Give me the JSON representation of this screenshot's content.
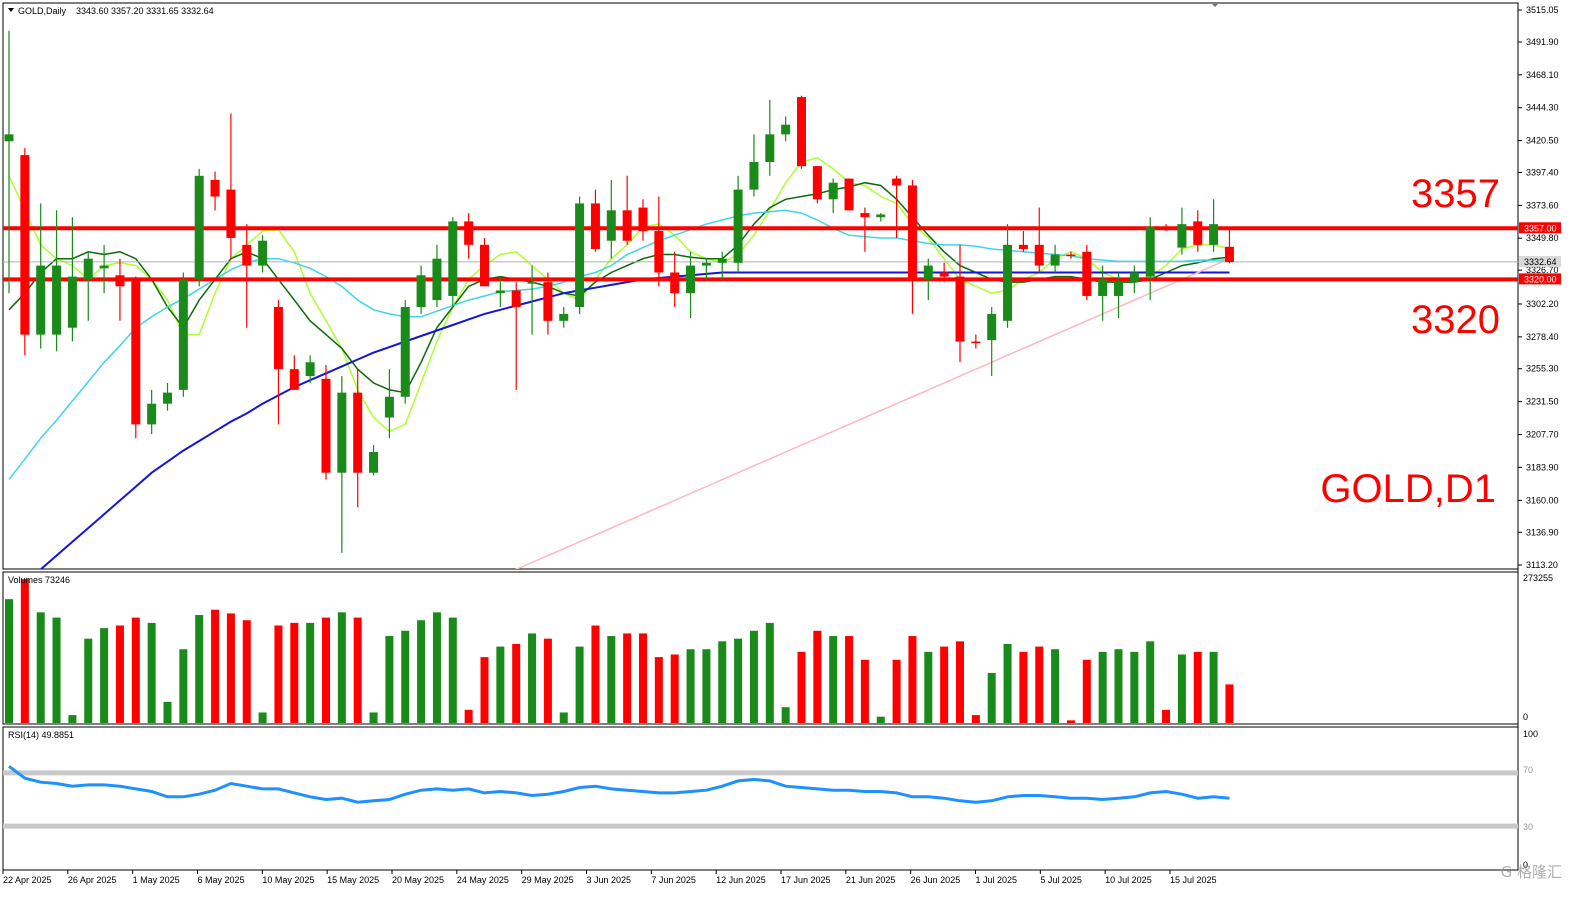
{
  "header": {
    "symbol_label": "GOLD,Daily",
    "ohlc_text": "3343.60 3357.20 3331.65 3332.64"
  },
  "annotations": {
    "big_label_upper": "3357",
    "big_label_lower": "3320",
    "symbol_tf": "GOLD,D1"
  },
  "volume_panel": {
    "label": "Volumes 73246",
    "max_label": "273255",
    "min_label": "0"
  },
  "rsi_panel": {
    "label": "RSI(14) 49.8851",
    "top_label": "100",
    "level_high_label": "70",
    "level_low_label": "30",
    "bottom_label": "0"
  },
  "watermark": "G 格隆汇",
  "chart_data": {
    "type": "candlestick",
    "symbol": "GOLD",
    "timeframe": "Daily",
    "price_axis": {
      "range": [
        3113.2,
        3515.05
      ],
      "tick_labels": [
        "3515.05",
        "3491.90",
        "3468.10",
        "3444.30",
        "3420.50",
        "3397.40",
        "3373.60",
        "3349.80",
        "3326.70",
        "3302.20",
        "3278.40",
        "3255.30",
        "3231.50",
        "3207.70",
        "3183.90",
        "3160.00",
        "3136.90",
        "3113.20"
      ],
      "current_price_label": "3332.64",
      "current_price": 3332.64
    },
    "horizontal_lines": [
      {
        "value": 3357.0,
        "label": "3357.00",
        "color": "#ff0000"
      },
      {
        "value": 3320.0,
        "label": "3320.00",
        "color": "#ff0000"
      }
    ],
    "x_axis_labels": [
      "22 Apr 2025",
      "26 Apr 2025",
      "1 May 2025",
      "6 May 2025",
      "10 May 2025",
      "15 May 2025",
      "20 May 2025",
      "24 May 2025",
      "29 May 2025",
      "3 Jun 2025",
      "7 Jun 2025",
      "12 Jun 2025",
      "17 Jun 2025",
      "21 Jun 2025",
      "26 Jun 2025",
      "1 Jul 2025",
      "5 Jul 2025",
      "10 Jul 2025",
      "15 Jul 2025"
    ],
    "candles": [
      {
        "o": 3420,
        "h": 3500,
        "l": 3310,
        "c": 3425,
        "v": 235000
      },
      {
        "o": 3410,
        "h": 3415,
        "l": 3265,
        "c": 3280,
        "v": 273000
      },
      {
        "o": 3280,
        "h": 3375,
        "l": 3270,
        "c": 3330,
        "v": 210000
      },
      {
        "o": 3280,
        "h": 3370,
        "l": 3268,
        "c": 3330,
        "v": 200000
      },
      {
        "o": 3285,
        "h": 3365,
        "l": 3275,
        "c": 3322,
        "v": 15000
      },
      {
        "o": 3320,
        "h": 3340,
        "l": 3290,
        "c": 3335,
        "v": 160000
      },
      {
        "o": 3328,
        "h": 3345,
        "l": 3310,
        "c": 3330,
        "v": 180000
      },
      {
        "o": 3323,
        "h": 3335,
        "l": 3290,
        "c": 3315,
        "v": 185000
      },
      {
        "o": 3320,
        "h": 3322,
        "l": 3205,
        "c": 3215,
        "v": 200000
      },
      {
        "o": 3215,
        "h": 3240,
        "l": 3208,
        "c": 3230,
        "v": 190000
      },
      {
        "o": 3230,
        "h": 3245,
        "l": 3225,
        "c": 3238,
        "v": 40000
      },
      {
        "o": 3240,
        "h": 3325,
        "l": 3235,
        "c": 3320,
        "v": 140000
      },
      {
        "o": 3320,
        "h": 3400,
        "l": 3315,
        "c": 3395,
        "v": 205000
      },
      {
        "o": 3392,
        "h": 3398,
        "l": 3370,
        "c": 3380,
        "v": 215000
      },
      {
        "o": 3385,
        "h": 3440,
        "l": 3335,
        "c": 3350,
        "v": 208000
      },
      {
        "o": 3345,
        "h": 3360,
        "l": 3285,
        "c": 3330,
        "v": 195000
      },
      {
        "o": 3330,
        "h": 3352,
        "l": 3325,
        "c": 3348,
        "v": 20000
      },
      {
        "o": 3300,
        "h": 3305,
        "l": 3215,
        "c": 3255,
        "v": 185000
      },
      {
        "o": 3255,
        "h": 3265,
        "l": 3240,
        "c": 3240,
        "v": 190000
      },
      {
        "o": 3250,
        "h": 3265,
        "l": 3245,
        "c": 3260,
        "v": 190000
      },
      {
        "o": 3248,
        "h": 3258,
        "l": 3175,
        "c": 3180,
        "v": 200000
      },
      {
        "o": 3180,
        "h": 3250,
        "l": 3122,
        "c": 3238,
        "v": 210000
      },
      {
        "o": 3238,
        "h": 3255,
        "l": 3155,
        "c": 3180,
        "v": 200000
      },
      {
        "o": 3180,
        "h": 3200,
        "l": 3178,
        "c": 3195,
        "v": 20000
      },
      {
        "o": 3220,
        "h": 3255,
        "l": 3205,
        "c": 3235,
        "v": 165000
      },
      {
        "o": 3235,
        "h": 3305,
        "l": 3230,
        "c": 3300,
        "v": 175000
      },
      {
        "o": 3300,
        "h": 3330,
        "l": 3295,
        "c": 3323,
        "v": 195000
      },
      {
        "o": 3305,
        "h": 3345,
        "l": 3300,
        "c": 3335,
        "v": 210000
      },
      {
        "o": 3308,
        "h": 3365,
        "l": 3300,
        "c": 3362,
        "v": 200000
      },
      {
        "o": 3362,
        "h": 3368,
        "l": 3335,
        "c": 3345,
        "v": 25000
      },
      {
        "o": 3345,
        "h": 3350,
        "l": 3315,
        "c": 3315,
        "v": 125000
      },
      {
        "o": 3310,
        "h": 3322,
        "l": 3300,
        "c": 3312,
        "v": 145000
      },
      {
        "o": 3312,
        "h": 3318,
        "l": 3240,
        "c": 3300,
        "v": 150000
      },
      {
        "o": 3318,
        "h": 3330,
        "l": 3280,
        "c": 3318,
        "v": 170000
      },
      {
        "o": 3318,
        "h": 3325,
        "l": 3280,
        "c": 3290,
        "v": 160000
      },
      {
        "o": 3290,
        "h": 3300,
        "l": 3285,
        "c": 3295,
        "v": 20000
      },
      {
        "o": 3300,
        "h": 3380,
        "l": 3295,
        "c": 3375,
        "v": 145000
      },
      {
        "o": 3375,
        "h": 3385,
        "l": 3340,
        "c": 3342,
        "v": 185000
      },
      {
        "o": 3348,
        "h": 3392,
        "l": 3335,
        "c": 3370,
        "v": 165000
      },
      {
        "o": 3370,
        "h": 3395,
        "l": 3345,
        "c": 3348,
        "v": 170000
      },
      {
        "o": 3372,
        "h": 3378,
        "l": 3348,
        "c": 3355,
        "v": 170000
      },
      {
        "o": 3355,
        "h": 3380,
        "l": 3315,
        "c": 3325,
        "v": 125000
      },
      {
        "o": 3325,
        "h": 3340,
        "l": 3300,
        "c": 3310,
        "v": 130000
      },
      {
        "o": 3310,
        "h": 3340,
        "l": 3292,
        "c": 3330,
        "v": 140000
      },
      {
        "o": 3330,
        "h": 3335,
        "l": 3320,
        "c": 3332,
        "v": 140000
      },
      {
        "o": 3332,
        "h": 3340,
        "l": 3320,
        "c": 3335,
        "v": 155000
      },
      {
        "o": 3332,
        "h": 3395,
        "l": 3325,
        "c": 3385,
        "v": 160000
      },
      {
        "o": 3385,
        "h": 3425,
        "l": 3380,
        "c": 3405,
        "v": 175000
      },
      {
        "o": 3405,
        "h": 3450,
        "l": 3395,
        "c": 3425,
        "v": 190000
      },
      {
        "o": 3425,
        "h": 3438,
        "l": 3420,
        "c": 3432,
        "v": 30000
      },
      {
        "o": 3452,
        "h": 3453,
        "l": 3400,
        "c": 3402,
        "v": 135000
      },
      {
        "o": 3402,
        "h": 3402,
        "l": 3375,
        "c": 3378,
        "v": 175000
      },
      {
        "o": 3378,
        "h": 3393,
        "l": 3368,
        "c": 3390,
        "v": 165000
      },
      {
        "o": 3393,
        "h": 3392,
        "l": 3370,
        "c": 3370,
        "v": 165000
      },
      {
        "o": 3368,
        "h": 3372,
        "l": 3340,
        "c": 3365,
        "v": 120000
      },
      {
        "o": 3365,
        "h": 3368,
        "l": 3362,
        "c": 3367,
        "v": 12000
      },
      {
        "o": 3393,
        "h": 3395,
        "l": 3350,
        "c": 3388,
        "v": 120000
      },
      {
        "o": 3388,
        "h": 3392,
        "l": 3295,
        "c": 3320,
        "v": 165000
      },
      {
        "o": 3320,
        "h": 3335,
        "l": 3305,
        "c": 3330,
        "v": 135000
      },
      {
        "o": 3325,
        "h": 3332,
        "l": 3318,
        "c": 3322,
        "v": 145000
      },
      {
        "o": 3322,
        "h": 3345,
        "l": 3260,
        "c": 3275,
        "v": 155000
      },
      {
        "o": 3275,
        "h": 3280,
        "l": 3270,
        "c": 3274,
        "v": 15000
      },
      {
        "o": 3276,
        "h": 3300,
        "l": 3250,
        "c": 3295,
        "v": 95000
      },
      {
        "o": 3290,
        "h": 3360,
        "l": 3285,
        "c": 3345,
        "v": 150000
      },
      {
        "o": 3345,
        "h": 3355,
        "l": 3340,
        "c": 3342,
        "v": 135000
      },
      {
        "o": 3345,
        "h": 3372,
        "l": 3325,
        "c": 3330,
        "v": 145000
      },
      {
        "o": 3330,
        "h": 3345,
        "l": 3325,
        "c": 3338,
        "v": 140000
      },
      {
        "o": 3338,
        "h": 3340,
        "l": 3335,
        "c": 3337,
        "v": 5000
      },
      {
        "o": 3340,
        "h": 3345,
        "l": 3305,
        "c": 3308,
        "v": 120000
      },
      {
        "o": 3308,
        "h": 3330,
        "l": 3290,
        "c": 3320,
        "v": 135000
      },
      {
        "o": 3308,
        "h": 3325,
        "l": 3292,
        "c": 3318,
        "v": 140000
      },
      {
        "o": 3318,
        "h": 3330,
        "l": 3310,
        "c": 3325,
        "v": 135000
      },
      {
        "o": 3322,
        "h": 3365,
        "l": 3305,
        "c": 3358,
        "v": 155000
      },
      {
        "o": 3358,
        "h": 3360,
        "l": 3355,
        "c": 3357,
        "v": 25000
      },
      {
        "o": 3343,
        "h": 3372,
        "l": 3338,
        "c": 3360,
        "v": 130000
      },
      {
        "o": 3362,
        "h": 3370,
        "l": 3340,
        "c": 3345,
        "v": 135000
      },
      {
        "o": 3345,
        "h": 3378,
        "l": 3340,
        "c": 3360,
        "v": 135000
      },
      {
        "o": 3343.6,
        "h": 3357.2,
        "l": 3331.65,
        "c": 3332.64,
        "v": 73246
      }
    ],
    "moving_averages": [
      {
        "color": "#adff2f",
        "values": [
          3395,
          3370,
          3345,
          3335,
          3330,
          3320,
          3330,
          3332,
          3330,
          3320,
          3305,
          3280,
          3280,
          3310,
          3335,
          3345,
          3355,
          3356,
          3340,
          3310,
          3290,
          3270,
          3240,
          3220,
          3210,
          3215,
          3245,
          3275,
          3300,
          3320,
          3330,
          3338,
          3340,
          3330,
          3320,
          3310,
          3305,
          3320,
          3335,
          3345,
          3358,
          3360,
          3352,
          3340,
          3335,
          3332,
          3338,
          3352,
          3370,
          3390,
          3405,
          3408,
          3400,
          3390,
          3388,
          3380,
          3375,
          3360,
          3350,
          3335,
          3320,
          3315,
          3310,
          3312,
          3320,
          3325,
          3335,
          3340,
          3335,
          3325,
          3320,
          3320,
          3322,
          3330,
          3342,
          3345,
          3345,
          3342
        ]
      },
      {
        "color": "#0a6b0a",
        "values": [
          3298,
          3310,
          3325,
          3335,
          3335,
          3340,
          3338,
          3340,
          3335,
          3320,
          3300,
          3285,
          3305,
          3320,
          3335,
          3340,
          3335,
          3320,
          3305,
          3290,
          3280,
          3270,
          3255,
          3245,
          3240,
          3238,
          3260,
          3285,
          3300,
          3315,
          3320,
          3322,
          3320,
          3318,
          3315,
          3310,
          3308,
          3318,
          3325,
          3330,
          3335,
          3338,
          3338,
          3336,
          3335,
          3335,
          3345,
          3360,
          3372,
          3378,
          3380,
          3382,
          3385,
          3387,
          3390,
          3388,
          3378,
          3365,
          3352,
          3340,
          3330,
          3325,
          3320,
          3318,
          3318,
          3320,
          3322,
          3322,
          3320,
          3318,
          3318,
          3318,
          3320,
          3325,
          3330,
          3332,
          3335,
          3336
        ]
      },
      {
        "color": "#3fd4e8",
        "values": [
          3175,
          3190,
          3205,
          3218,
          3232,
          3246,
          3260,
          3272,
          3285,
          3293,
          3300,
          3306,
          3313,
          3320,
          3327,
          3332,
          3335,
          3335,
          3332,
          3328,
          3322,
          3315,
          3305,
          3298,
          3295,
          3293,
          3293,
          3297,
          3301,
          3305,
          3308,
          3311,
          3312,
          3313,
          3315,
          3318,
          3322,
          3325,
          3330,
          3338,
          3343,
          3348,
          3352,
          3356,
          3360,
          3363,
          3366,
          3368,
          3369,
          3370,
          3368,
          3363,
          3357,
          3352,
          3351,
          3350,
          3350,
          3348,
          3346,
          3345,
          3345,
          3344,
          3342,
          3341,
          3340,
          3339,
          3338,
          3337,
          3335,
          3334,
          3333,
          3333,
          3333,
          3333,
          3333,
          3334,
          3334,
          3334
        ]
      },
      {
        "color": "#1515d6",
        "values": [
          3090,
          3100,
          3110,
          3120,
          3130,
          3140,
          3150,
          3160,
          3170,
          3180,
          3188,
          3196,
          3203,
          3210,
          3217,
          3223,
          3230,
          3236,
          3242,
          3247,
          3252,
          3257,
          3262,
          3267,
          3271,
          3275,
          3279,
          3283,
          3287,
          3291,
          3295,
          3298,
          3301,
          3304,
          3307,
          3310,
          3312,
          3314,
          3316,
          3318,
          3320,
          3321,
          3322,
          3323,
          3324,
          3325,
          3325,
          3325,
          3325,
          3325,
          3325,
          3325,
          3325,
          3325,
          3325,
          3325,
          3325,
          3325,
          3325,
          3325,
          3325,
          3325,
          3325,
          3325,
          3325,
          3325,
          3325,
          3325,
          3325,
          3325,
          3325,
          3325,
          3325,
          3325,
          3325,
          3325,
          3325,
          3325
        ]
      },
      {
        "color": "#ffb6c1",
        "values": [
          2950,
          2955,
          2960,
          2965,
          2970,
          2975,
          2980,
          2985,
          2990,
          2995,
          3000,
          3005,
          3010,
          3015,
          3020,
          3025,
          3030,
          3035,
          3040,
          3045,
          3050,
          3055,
          3060,
          3065,
          3070,
          3075,
          3080,
          3085,
          3090,
          3095,
          3100,
          3105,
          3110,
          3115,
          3120,
          3125,
          3130,
          3135,
          3140,
          3145,
          3150,
          3155,
          3160,
          3165,
          3170,
          3175,
          3180,
          3185,
          3190,
          3195,
          3200,
          3205,
          3210,
          3215,
          3220,
          3225,
          3230,
          3235,
          3240,
          3245,
          3250,
          3255,
          3260,
          3265,
          3270,
          3275,
          3280,
          3285,
          3290,
          3295,
          3300,
          3305,
          3310,
          3315,
          3320,
          3325,
          3330,
          3335
        ]
      }
    ],
    "volume": {
      "range": [
        0,
        273255
      ]
    },
    "rsi": {
      "period": 14,
      "range": [
        0,
        100
      ],
      "levels": [
        70,
        30
      ],
      "line_color": "#1e90ff",
      "values": [
        75,
        66,
        63,
        62,
        60,
        61,
        61,
        60,
        58,
        56,
        52,
        52,
        54,
        57,
        62,
        60,
        58,
        58,
        55,
        52,
        50,
        51,
        48,
        49,
        50,
        54,
        57,
        58,
        57,
        58,
        55,
        56,
        55,
        53,
        54,
        56,
        59,
        60,
        58,
        57,
        56,
        55,
        55,
        56,
        57,
        60,
        64,
        65,
        64,
        60,
        59,
        58,
        57,
        57,
        56,
        56,
        55,
        52,
        52,
        51,
        49,
        48,
        49,
        52,
        53,
        53,
        52,
        51,
        51,
        50,
        51,
        52,
        55,
        56,
        54,
        51,
        52,
        51
      ]
    },
    "colors": {
      "bull": "#1a8a1a",
      "bear": "#ff0000",
      "level_line": "#ff0000",
      "rsi_level": "#c8c8c8"
    }
  }
}
